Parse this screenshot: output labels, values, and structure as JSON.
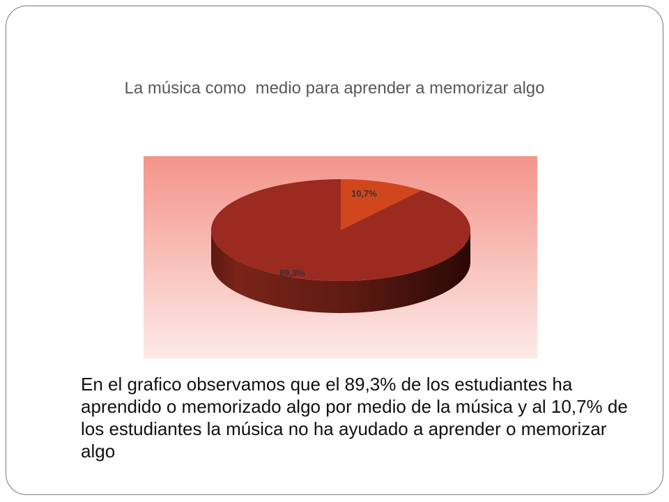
{
  "slide": {
    "title": "La música como  medio para aprender a memorizar algo",
    "body_text": "En el grafico observamos que el 89,3% de los estudiantes ha aprendido o memorizado algo por medio de la música y al 10,7% de los estudiantes la música no ha ayudado a aprender o memorizar algo"
  },
  "chart_data": {
    "type": "pie",
    "style": "3d",
    "title": "",
    "slices": [
      {
        "label": "10,7%",
        "value": 10.7,
        "color": "#D2461E"
      },
      {
        "label": "89,3%",
        "value": 89.3,
        "color": "#9B2A20"
      }
    ],
    "legend": "none",
    "background": {
      "top_color": "#F4948A",
      "bottom_color": "#FDEAE8"
    }
  }
}
